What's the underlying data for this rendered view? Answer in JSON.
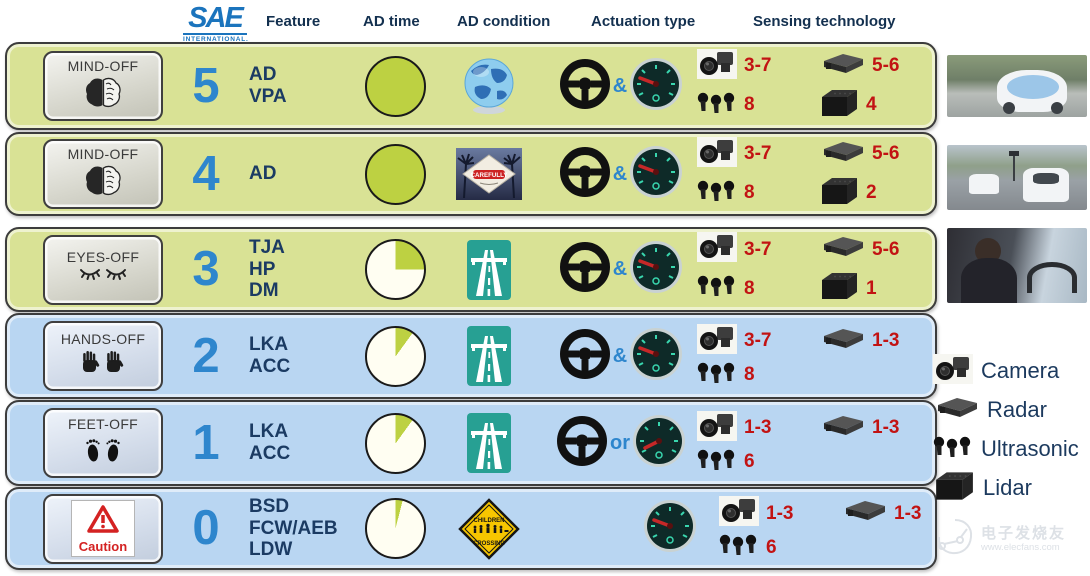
{
  "header": {
    "logo_title": "SAE",
    "logo_subtitle": "INTERNATIONAL.",
    "columns": [
      "Feature",
      "AD time",
      "AD condition",
      "Actuation type",
      "Sensing technology"
    ]
  },
  "rows": [
    {
      "badge_label": "MIND-OFF",
      "level": "5",
      "features": [
        "AD",
        "VPA"
      ],
      "ad_time_percent": 100,
      "condition": {
        "type": "globe"
      },
      "actuation": {
        "connector": "&"
      },
      "sensing": {
        "camera": "3-7",
        "radar": "5-6",
        "ultrasonic": "8",
        "lidar": "4"
      }
    },
    {
      "badge_label": "MIND-OFF",
      "level": "4",
      "features": [
        "AD"
      ],
      "ad_time_percent": 100,
      "condition": {
        "type": "drive-carefully-sign",
        "sign_text": "CAREFULLY"
      },
      "actuation": {
        "connector": "&"
      },
      "sensing": {
        "camera": "3-7",
        "radar": "5-6",
        "ultrasonic": "8",
        "lidar": "2"
      }
    },
    {
      "badge_label": "EYES-OFF",
      "level": "3",
      "features": [
        "TJA",
        "HP",
        "DM"
      ],
      "ad_time_percent": 25,
      "condition": {
        "type": "motorway-sign"
      },
      "actuation": {
        "connector": "&"
      },
      "sensing": {
        "camera": "3-7",
        "radar": "5-6",
        "ultrasonic": "8",
        "lidar": "1"
      }
    },
    {
      "badge_label": "HANDS-OFF",
      "level": "2",
      "features": [
        "LKA",
        "ACC"
      ],
      "ad_time_percent": 10,
      "condition": {
        "type": "motorway-sign"
      },
      "actuation": {
        "connector": "&"
      },
      "sensing": {
        "camera": "3-7",
        "radar": "1-3",
        "ultrasonic": "8"
      }
    },
    {
      "badge_label": "FEET-OFF",
      "level": "1",
      "features": [
        "LKA",
        "ACC"
      ],
      "ad_time_percent": 10,
      "condition": {
        "type": "motorway-sign"
      },
      "actuation": {
        "connector": "or"
      },
      "sensing": {
        "camera": "1-3",
        "radar": "1-3",
        "ultrasonic": "6"
      }
    },
    {
      "badge_label": "",
      "caution_text": "Caution",
      "level": "0",
      "features": [
        "BSD",
        "FCW/AEB",
        "LDW"
      ],
      "ad_time_percent": 4,
      "condition": {
        "type": "children-crossing-sign",
        "sign_top": "CHILDREN",
        "sign_bottom": "CROSSING"
      },
      "actuation": {
        "connector": ""
      },
      "sensing": {
        "camera": "1-3",
        "radar": "1-3",
        "ultrasonic": "6"
      }
    }
  ],
  "legend": [
    {
      "label": "Camera"
    },
    {
      "label": "Radar"
    },
    {
      "label": "Ultrasonic"
    },
    {
      "label": "Lidar"
    }
  ],
  "watermark": {
    "brand": "电子发烧友",
    "url": "www.elecfans.com"
  },
  "colors": {
    "row_green": "#d9e295",
    "row_blue": "#b9d6f2",
    "pie_green": "#bdd142",
    "pie_white": "#fffef2",
    "accent_blue": "#2e86cd",
    "count_red": "#c21313",
    "navy": "#13304f",
    "sign_teal": "#27a093",
    "caution_red": "#d42222",
    "sign_yellow": "#f7c600",
    "logo_blue": "#1b74bd"
  }
}
